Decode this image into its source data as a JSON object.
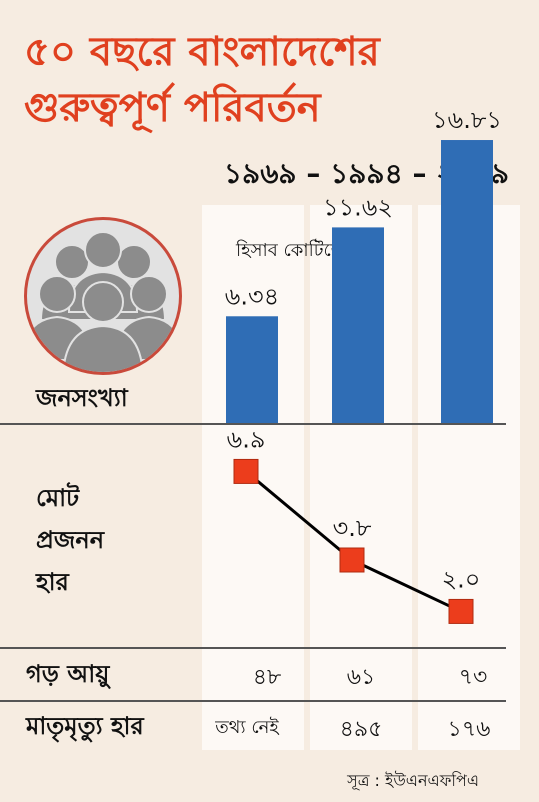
{
  "title": {
    "line1": "৫০ বছরে বাংলাদেশের",
    "line2": "গুরুত্বপূর্ণ পরিবর্তন"
  },
  "years_header": "১৯৬৯ – ১৯৯৪ – ২০১৯",
  "population": {
    "label": "জনসংখ্যা",
    "unit_note": "হিসাব কোটিতে",
    "icon": "people-group-icon"
  },
  "fertility": {
    "label_lines": [
      "মোট",
      "প্রজনন",
      "হার"
    ]
  },
  "life_expectancy": {
    "label": "গড় আয়ু",
    "values": [
      "৪৮",
      "৬১",
      "৭৩"
    ]
  },
  "maternal_mortality": {
    "label": "মাতৃমৃত্যু হার",
    "values": [
      "তথ্য নেই",
      "৪৯৫",
      "১৭৬"
    ]
  },
  "source": "সূত্র : ইউএনএফপিএ",
  "colors": {
    "title": "#e0401f",
    "bar": "#2f6db5",
    "marker": "#ec3d1c",
    "line": "#000000"
  },
  "chart_data": [
    {
      "type": "bar",
      "categories": [
        "১৯৬৯",
        "১৯৯৪",
        "২০১৯"
      ],
      "values": [
        6.34,
        11.62,
        16.81
      ],
      "value_labels": [
        "৬.৩৪",
        "১১.৬২",
        "১৬.৮১"
      ],
      "ylim": [
        0,
        18
      ]
    },
    {
      "type": "line",
      "categories": [
        "১৯৬৯",
        "১৯৯৪",
        "২০১৯"
      ],
      "values": [
        6.9,
        3.8,
        2.0
      ],
      "value_labels": [
        "৬.৯",
        "৩.৮",
        "২.০"
      ],
      "ylim": [
        1,
        8
      ]
    }
  ]
}
